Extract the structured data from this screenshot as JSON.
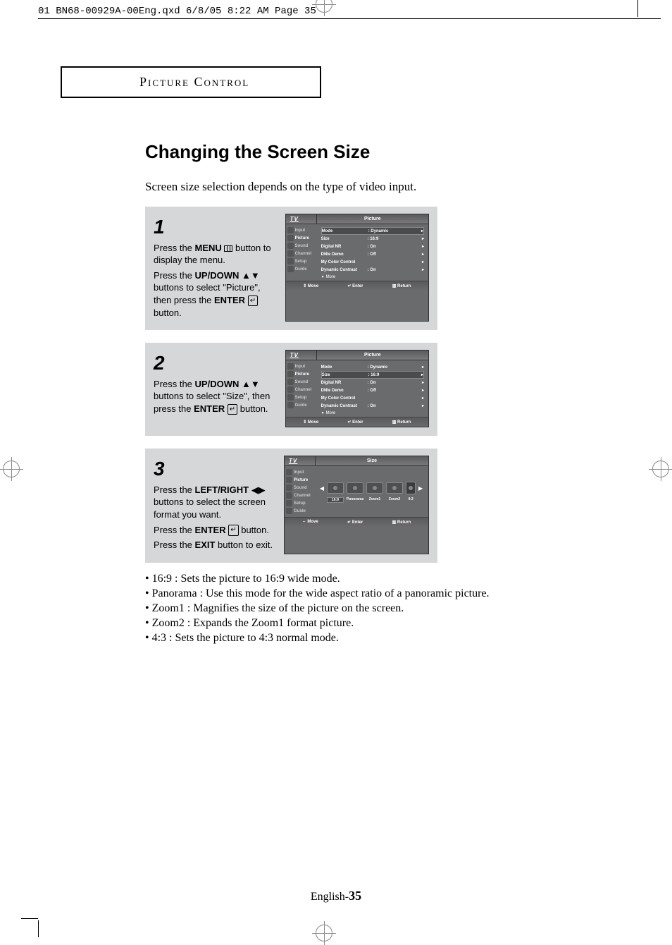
{
  "print_header": "01 BN68-00929A-00Eng.qxd  6/8/05 8:22 AM  Page 35",
  "section_header": "Picture Control",
  "page_title": "Changing the Screen Size",
  "intro": "Screen size selection depends on the type of video input.",
  "steps": [
    {
      "num": "1",
      "lines": [
        {
          "pre": "Press the ",
          "bold": "MENU",
          "icon": "menu",
          "post": " button to display the menu."
        },
        {
          "pre": "Press the ",
          "bold": "UP/DOWN",
          "icon": "updown",
          "post": " buttons to select \"Picture\", then press the ",
          "bold2": "ENTER",
          "icon2": "enter",
          "post2": " button."
        }
      ],
      "osd": {
        "title": "Picture",
        "selected_nav": "Picture",
        "rows": [
          {
            "lbl": "Mode",
            "val": ": Dynamic",
            "hl": true
          },
          {
            "lbl": "Size",
            "val": ": 16:9"
          },
          {
            "lbl": "Digital NR",
            "val": ": On"
          },
          {
            "lbl": "DNIe Demo",
            "val": ": Off"
          },
          {
            "lbl": "My Color Control",
            "val": ""
          },
          {
            "lbl": "Dynamic Contrast",
            "val": ": On"
          }
        ],
        "more": "More",
        "foot": {
          "move": "Move",
          "move_sym": "⇕",
          "enter": "Enter",
          "return": "Return"
        }
      }
    },
    {
      "num": "2",
      "lines": [
        {
          "pre": "Press the ",
          "bold": "UP/DOWN",
          "icon": "updown",
          "post": " buttons to select \"Size\", then press the ",
          "bold2": "ENTER",
          "icon2": "enter",
          "post2": " button."
        }
      ],
      "osd": {
        "title": "Picture",
        "selected_nav": "Picture",
        "rows": [
          {
            "lbl": "Mode",
            "val": ": Dynamic"
          },
          {
            "lbl": "Size",
            "val": ": 16:9",
            "hl": true
          },
          {
            "lbl": "Digital NR",
            "val": ": On"
          },
          {
            "lbl": "DNIe Demo",
            "val": ": Off"
          },
          {
            "lbl": "My Color Control",
            "val": ""
          },
          {
            "lbl": "Dynamic Contrast",
            "val": ": On"
          }
        ],
        "more": "More",
        "foot": {
          "move": "Move",
          "move_sym": "⇕",
          "enter": "Enter",
          "return": "Return"
        }
      }
    },
    {
      "num": "3",
      "lines": [
        {
          "pre": "Press the ",
          "bold": "LEFT/RIGHT",
          "icon": "leftright",
          "post": " buttons to select the screen format you want."
        },
        {
          "pre": "Press the ",
          "bold": "ENTER",
          "icon": "enter",
          "post": " button."
        },
        {
          "pre": "Press the ",
          "bold": "EXIT",
          "post": " button to exit."
        }
      ],
      "osd_size": {
        "title": "Size",
        "selected_nav": "Picture",
        "options": [
          "16:9",
          "Panorama",
          "Zoom1",
          "Zoom2",
          "4:3"
        ],
        "selected": "16:9",
        "foot": {
          "move": "Move",
          "move_sym": "⇔",
          "enter": "Enter",
          "return": "Return"
        }
      }
    }
  ],
  "nav_items": [
    "Input",
    "Picture",
    "Sound",
    "Channel",
    "Setup",
    "Guide"
  ],
  "tv_label": "TV",
  "bullets": [
    "• 16:9 : Sets the picture to 16:9 wide mode.",
    "• Panorama : Use this mode for the wide aspect ratio of a panoramic picture.",
    "• Zoom1 : Magnifies the size of the picture on the screen.",
    "• Zoom2 : Expands the Zoom1 format picture.",
    "• 4:3 : Sets the picture to 4:3 normal mode."
  ],
  "footer": {
    "lang": "English-",
    "num": "35"
  },
  "colors": {
    "step_bg": "#d6d7d9",
    "osd_bg": "#6a6b6d",
    "osd_hl": "#4a4b4d",
    "text": "#000000"
  }
}
